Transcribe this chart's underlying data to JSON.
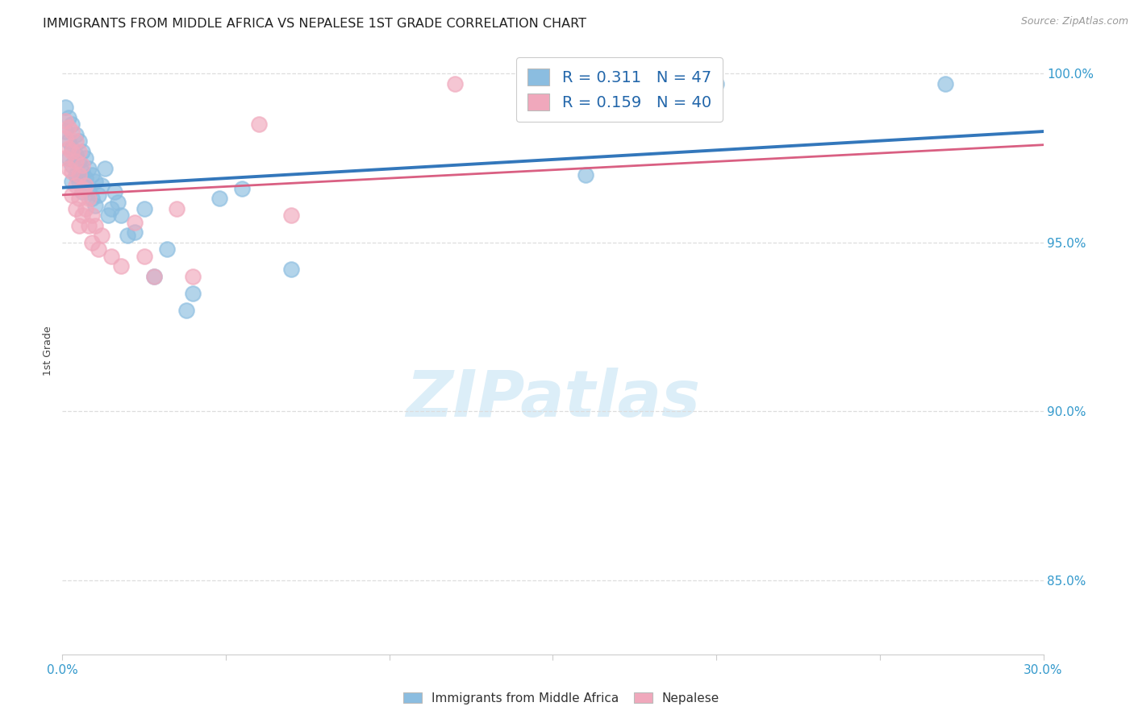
{
  "title": "IMMIGRANTS FROM MIDDLE AFRICA VS NEPALESE 1ST GRADE CORRELATION CHART",
  "source": "Source: ZipAtlas.com",
  "ylabel": "1st Grade",
  "xlim": [
    0.0,
    0.3
  ],
  "ylim": [
    0.828,
    1.008
  ],
  "yticks": [
    0.85,
    0.9,
    0.95,
    1.0
  ],
  "ytick_labels": [
    "85.0%",
    "90.0%",
    "95.0%",
    "100.0%"
  ],
  "xticks": [
    0.0,
    0.05,
    0.1,
    0.15,
    0.2,
    0.25,
    0.3
  ],
  "xtick_labels": [
    "0.0%",
    "",
    "",
    "",
    "",
    "",
    "30.0%"
  ],
  "legend_blue_r": "0.311",
  "legend_blue_n": "47",
  "legend_pink_r": "0.159",
  "legend_pink_n": "40",
  "blue_scatter_x": [
    0.001,
    0.001,
    0.002,
    0.002,
    0.002,
    0.003,
    0.003,
    0.003,
    0.003,
    0.004,
    0.004,
    0.004,
    0.005,
    0.005,
    0.005,
    0.006,
    0.006,
    0.006,
    0.007,
    0.007,
    0.008,
    0.008,
    0.009,
    0.009,
    0.01,
    0.01,
    0.011,
    0.012,
    0.013,
    0.014,
    0.015,
    0.016,
    0.017,
    0.018,
    0.02,
    0.022,
    0.025,
    0.028,
    0.032,
    0.038,
    0.04,
    0.048,
    0.055,
    0.07,
    0.16,
    0.2,
    0.27
  ],
  "blue_scatter_y": [
    0.99,
    0.983,
    0.987,
    0.98,
    0.975,
    0.985,
    0.978,
    0.973,
    0.968,
    0.982,
    0.976,
    0.97,
    0.98,
    0.974,
    0.968,
    0.977,
    0.971,
    0.965,
    0.975,
    0.969,
    0.972,
    0.965,
    0.97,
    0.963,
    0.968,
    0.961,
    0.964,
    0.967,
    0.972,
    0.958,
    0.96,
    0.965,
    0.962,
    0.958,
    0.952,
    0.953,
    0.96,
    0.94,
    0.948,
    0.93,
    0.935,
    0.963,
    0.966,
    0.942,
    0.97,
    0.997,
    0.997
  ],
  "pink_scatter_x": [
    0.001,
    0.001,
    0.001,
    0.002,
    0.002,
    0.002,
    0.003,
    0.003,
    0.003,
    0.003,
    0.004,
    0.004,
    0.004,
    0.004,
    0.005,
    0.005,
    0.005,
    0.005,
    0.006,
    0.006,
    0.006,
    0.007,
    0.007,
    0.008,
    0.008,
    0.009,
    0.009,
    0.01,
    0.011,
    0.012,
    0.015,
    0.018,
    0.022,
    0.025,
    0.028,
    0.035,
    0.04,
    0.06,
    0.07,
    0.12
  ],
  "pink_scatter_y": [
    0.986,
    0.981,
    0.975,
    0.984,
    0.978,
    0.972,
    0.983,
    0.977,
    0.971,
    0.964,
    0.98,
    0.974,
    0.967,
    0.96,
    0.977,
    0.97,
    0.963,
    0.955,
    0.973,
    0.966,
    0.958,
    0.967,
    0.96,
    0.963,
    0.955,
    0.958,
    0.95,
    0.955,
    0.948,
    0.952,
    0.946,
    0.943,
    0.956,
    0.946,
    0.94,
    0.96,
    0.94,
    0.985,
    0.958,
    0.997
  ],
  "blue_color": "#8bbde0",
  "pink_color": "#f0a8bc",
  "blue_line_color": "#3377bb",
  "pink_line_color": "#d95f82",
  "grid_color": "#dddddd",
  "watermark_text": "ZIPatlas",
  "watermark_color": "#dceef8",
  "background_color": "#ffffff",
  "bottom_legend_labels": [
    "Immigrants from Middle Africa",
    "Nepalese"
  ]
}
